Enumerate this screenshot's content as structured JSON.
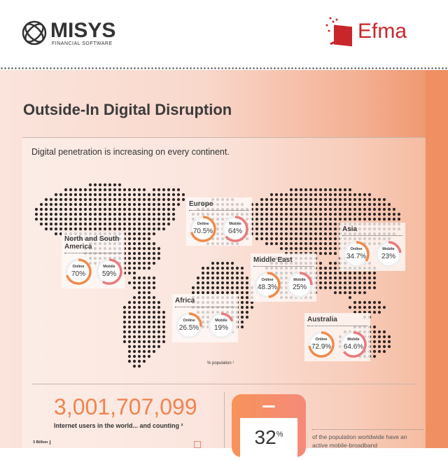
{
  "header": {
    "misys_name": "MISYS",
    "misys_tagline": "FINANCIAL SOFTWARE",
    "efma_name": "Efma"
  },
  "title": "Outside-In Digital Disruption",
  "subtitle": "Digital penetration is increasing on every continent.",
  "colors": {
    "online": "#f08a4b",
    "mobile": "#ea7a7a",
    "accent": "#f08450",
    "efma_red": "#c8262b"
  },
  "regions": [
    {
      "name": "North and South America",
      "online": 70,
      "mobile": 59,
      "online_text": "70%",
      "mobile_text": "59%"
    },
    {
      "name": "Europe",
      "online": 70.5,
      "mobile": 64,
      "online_text": "70.5%",
      "mobile_text": "64%"
    },
    {
      "name": "Asia",
      "online": 34.7,
      "mobile": 23,
      "online_text": "34.7%",
      "mobile_text": "23%"
    },
    {
      "name": "Middle East",
      "online": 48.3,
      "mobile": 25,
      "online_text": "48.3%",
      "mobile_text": "25%"
    },
    {
      "name": "Africa",
      "online": 26.5,
      "mobile": 19,
      "online_text": "26.5%",
      "mobile_text": "19%"
    },
    {
      "name": "Australia",
      "online": 72.9,
      "mobile": 64.6,
      "online_text": "72.9%",
      "mobile_text": "64.6%"
    }
  ],
  "labels": {
    "online": "Online",
    "mobile": "Mobile",
    "population_note": "% population ¹"
  },
  "stats": {
    "internet_users": "3,001,707,099",
    "internet_caption": "Internet users in the world... and counting ²",
    "axis_label": "3 Billion",
    "mobile_pct": "32",
    "mobile_pct_unit": "%",
    "mobile_text": "of the population worldwide have an active mobile-broadband"
  }
}
